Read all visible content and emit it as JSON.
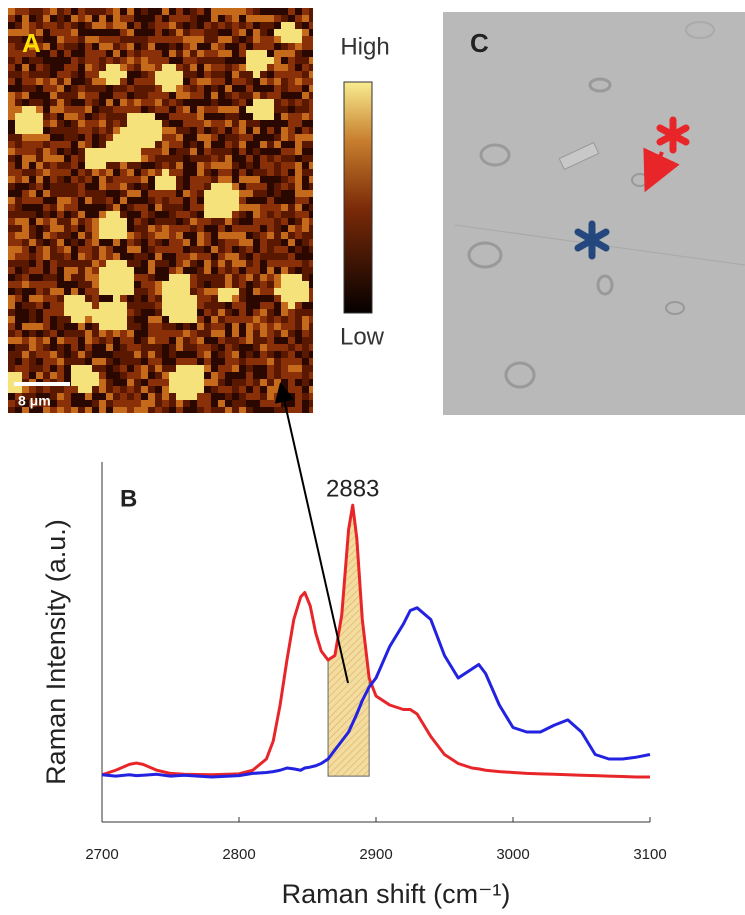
{
  "panels": {
    "a": {
      "label": "A",
      "colorbar_high": "High",
      "colorbar_low": "Low",
      "scale_bar": "8 μm"
    },
    "c": {
      "label": "C"
    }
  },
  "chart_data": {
    "type": "line",
    "label": "B",
    "annotation": "2883",
    "x_label": "Raman shift (cm⁻¹)",
    "y_label": "Raman Intensity (a.u.)",
    "xlim": [
      2700,
      3100
    ],
    "xticks": [
      2700,
      2800,
      2900,
      3000,
      3100
    ],
    "ylim": [
      0,
      8
    ],
    "x": [
      2700,
      2710,
      2720,
      2725,
      2730,
      2740,
      2750,
      2760,
      2780,
      2800,
      2810,
      2820,
      2825,
      2830,
      2835,
      2840,
      2845,
      2848,
      2852,
      2856,
      2860,
      2865,
      2870,
      2875,
      2880,
      2883,
      2886,
      2890,
      2895,
      2900,
      2910,
      2920,
      2925,
      2930,
      2940,
      2950,
      2960,
      2970,
      2975,
      2980,
      2990,
      3000,
      3010,
      3020,
      3030,
      3040,
      3050,
      3060,
      3070,
      3080,
      3090,
      3100
    ],
    "series": [
      {
        "color": "#e8262a",
        "values": [
          1.05,
          1.15,
          1.28,
          1.31,
          1.28,
          1.15,
          1.08,
          1.06,
          1.05,
          1.07,
          1.15,
          1.4,
          1.8,
          2.6,
          3.6,
          4.5,
          5.0,
          5.1,
          4.8,
          4.2,
          3.8,
          3.6,
          3.7,
          4.6,
          6.5,
          7.04,
          6.3,
          4.5,
          3.2,
          2.8,
          2.6,
          2.5,
          2.5,
          2.4,
          1.9,
          1.5,
          1.3,
          1.2,
          1.18,
          1.15,
          1.12,
          1.1,
          1.08,
          1.07,
          1.06,
          1.05,
          1.04,
          1.03,
          1.02,
          1.01,
          1.0,
          1.0
        ]
      },
      {
        "color": "#2222e0",
        "values": [
          1.05,
          1.02,
          1.05,
          1.03,
          1.04,
          1.06,
          1.02,
          1.04,
          1.0,
          1.03,
          1.08,
          1.1,
          1.12,
          1.15,
          1.2,
          1.18,
          1.15,
          1.2,
          1.22,
          1.25,
          1.3,
          1.4,
          1.6,
          1.8,
          2.0,
          2.2,
          2.4,
          2.7,
          3.0,
          3.2,
          3.9,
          4.4,
          4.7,
          4.76,
          4.5,
          3.7,
          3.2,
          3.4,
          3.5,
          3.3,
          2.6,
          2.1,
          2.0,
          2.0,
          2.15,
          2.27,
          2.0,
          1.5,
          1.4,
          1.4,
          1.44,
          1.5
        ]
      }
    ],
    "highlight": {
      "x": [
        2865,
        2895
      ],
      "y_floor": 1.02,
      "color": "#f3dca0"
    }
  }
}
